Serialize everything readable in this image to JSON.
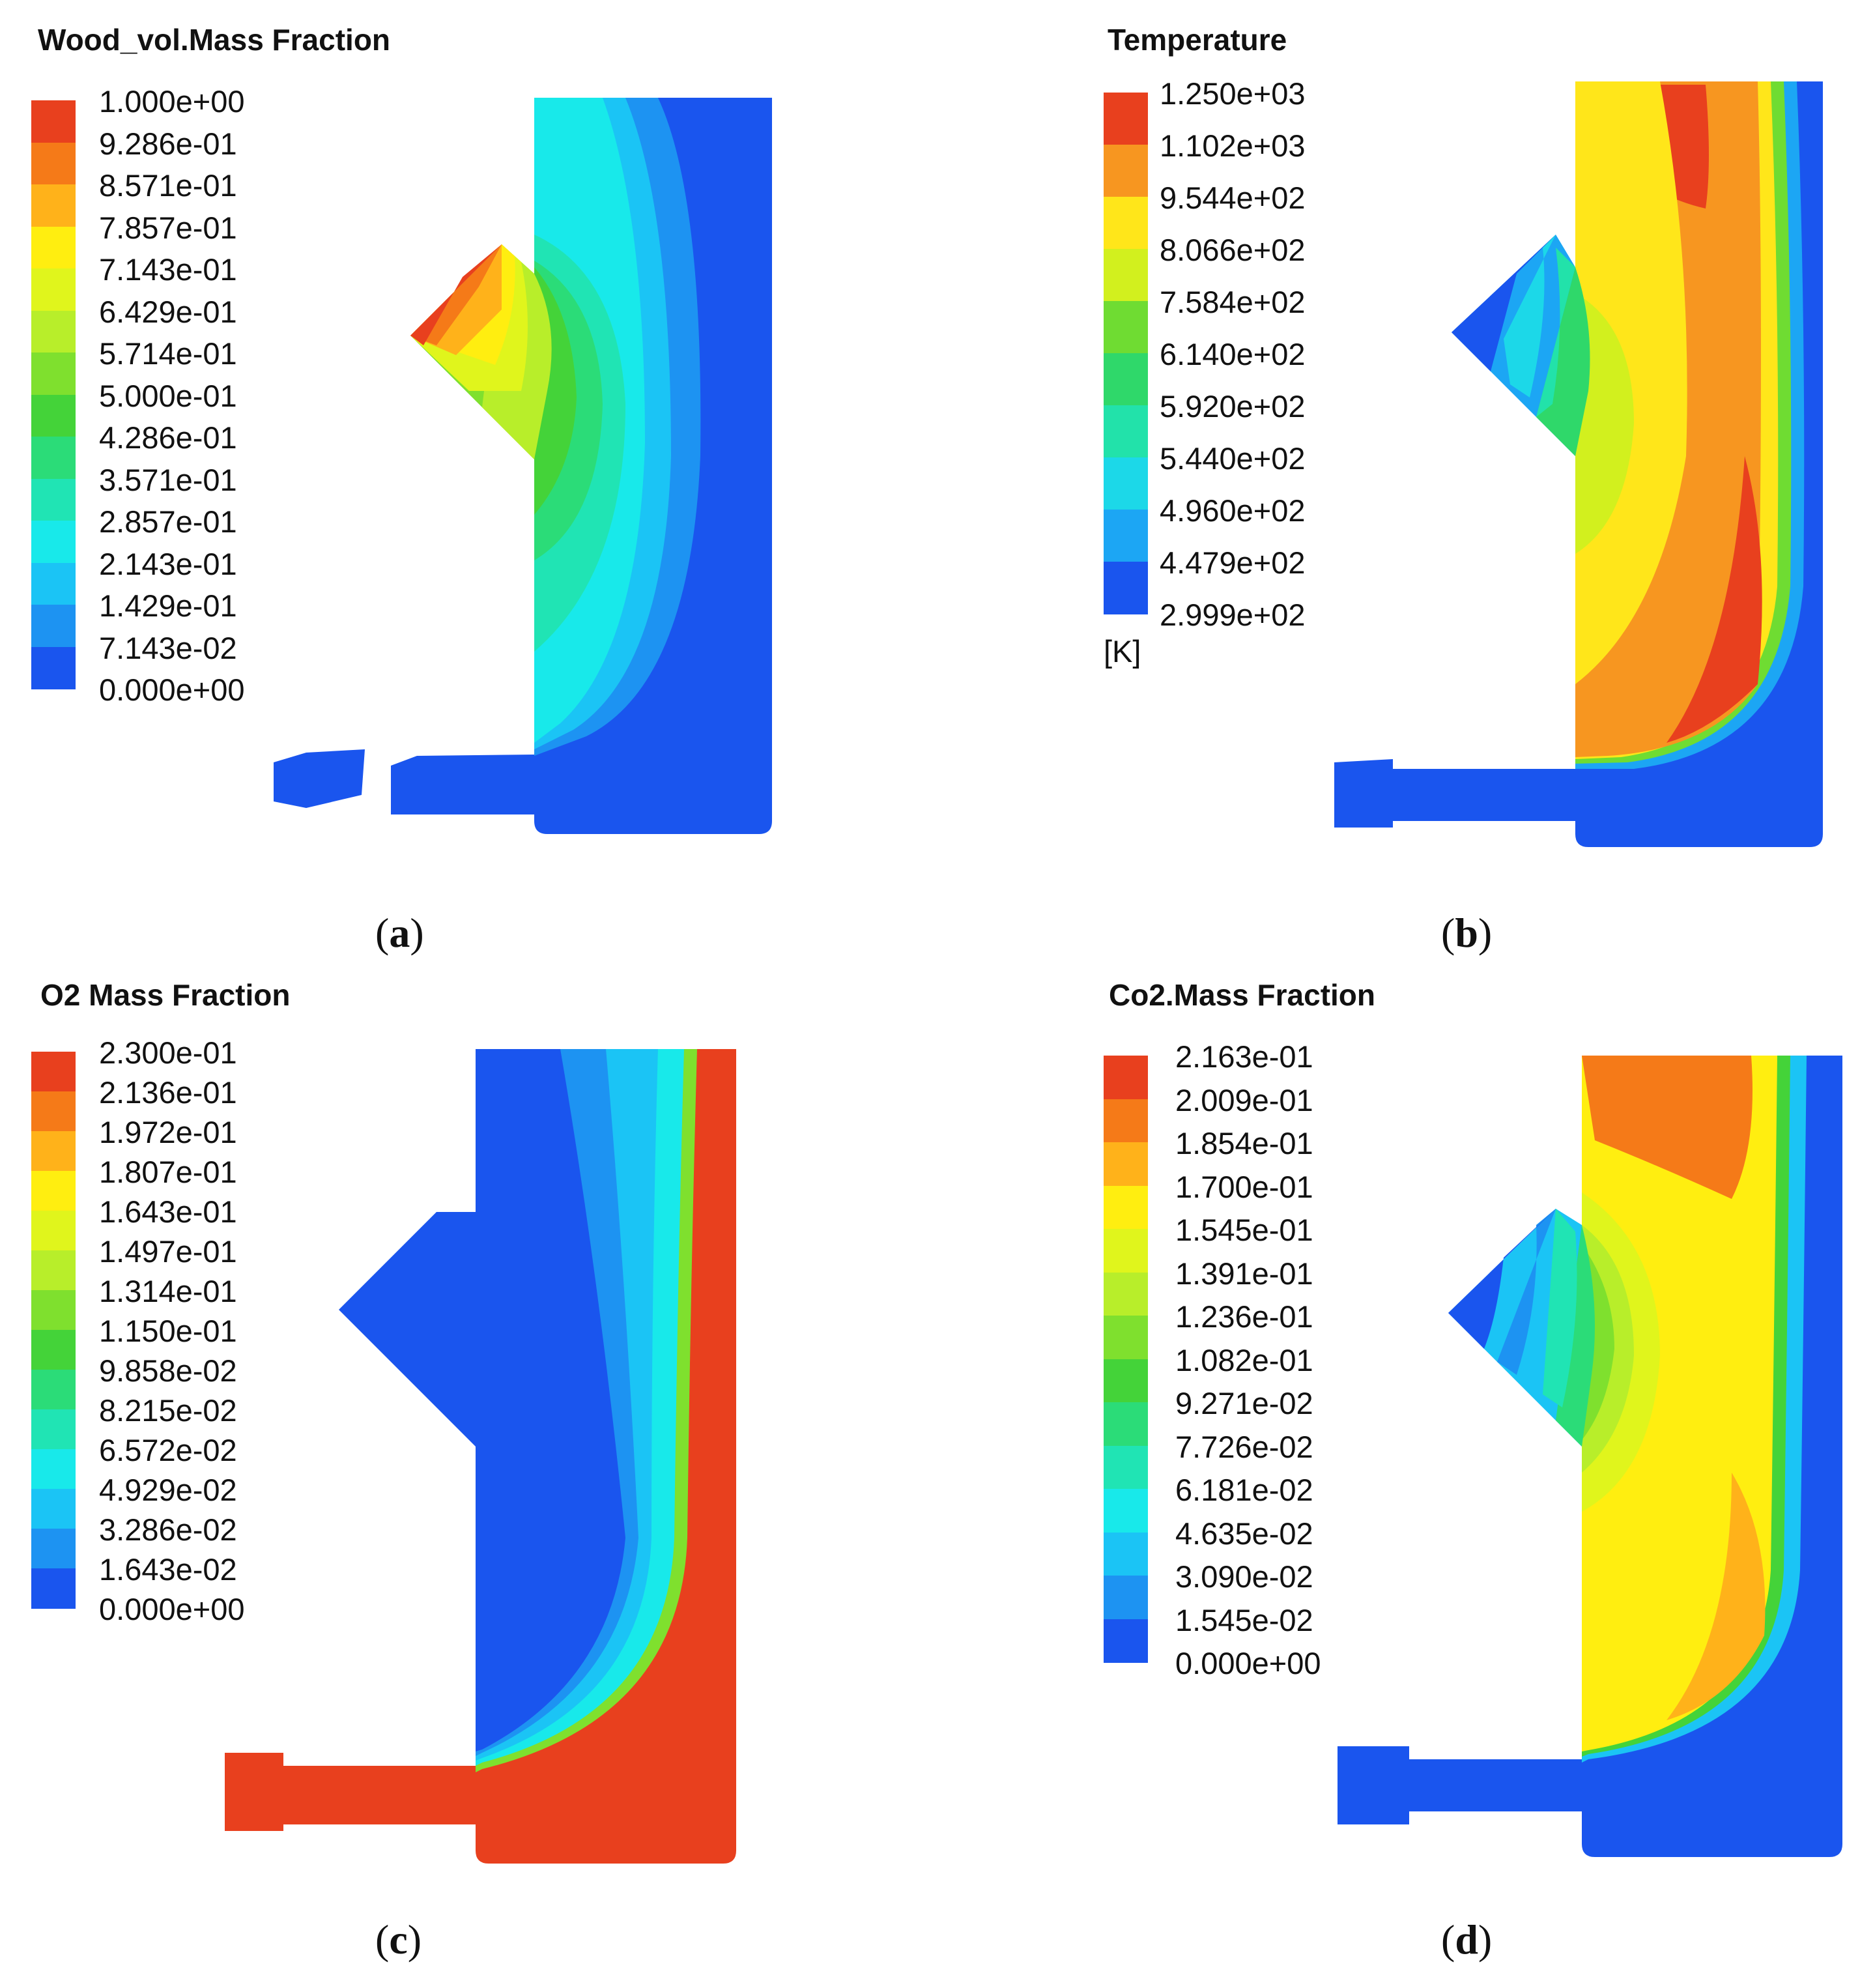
{
  "panels": [
    {
      "id": "a",
      "title": "Wood_vol.Mass Fraction",
      "label": "a",
      "legend": {
        "unit": "",
        "ticks": [
          "1.000e+00",
          "9.286e-01",
          "8.571e-01",
          "7.857e-01",
          "7.143e-01",
          "6.429e-01",
          "5.714e-01",
          "5.000e-01",
          "4.286e-01",
          "3.571e-01",
          "2.857e-01",
          "2.143e-01",
          "1.429e-01",
          "7.143e-02",
          "0.000e+00"
        ],
        "colors": [
          "#e8401e",
          "#f57a18",
          "#ffb21a",
          "#ffee10",
          "#e0f51c",
          "#b8ee2a",
          "#7fe02e",
          "#44d339",
          "#2bdc78",
          "#20e4b4",
          "#18e9ea",
          "#1bc4f5",
          "#1d93f2",
          "#1a55ee"
        ]
      }
    },
    {
      "id": "b",
      "title": "Temperature",
      "label": "b",
      "legend": {
        "unit": "[K]",
        "ticks": [
          "1.250e+03",
          "1.102e+03",
          "9.544e+02",
          "8.066e+02",
          "7.584e+02",
          "6.140e+02",
          "5.920e+02",
          "5.440e+02",
          "4.960e+02",
          "4.479e+02",
          "2.999e+02"
        ],
        "colors": [
          "#e8401e",
          "#f79620",
          "#ffe61a",
          "#d2f01e",
          "#6fdc32",
          "#2fd86a",
          "#22e2aa",
          "#1cd8e8",
          "#1ca6f4",
          "#1a55ee"
        ]
      }
    },
    {
      "id": "c",
      "title": "O2 Mass Fraction",
      "label": "c",
      "legend": {
        "unit": "",
        "ticks": [
          "2.300e-01",
          "2.136e-01",
          "1.972e-01",
          "1.807e-01",
          "1.643e-01",
          "1.497e-01",
          "1.314e-01",
          "1.150e-01",
          "9.858e-02",
          "8.215e-02",
          "6.572e-02",
          "4.929e-02",
          "3.286e-02",
          "1.643e-02",
          "0.000e+00"
        ],
        "colors": [
          "#e8401e",
          "#f57a18",
          "#ffb21a",
          "#ffee10",
          "#e0f51c",
          "#b8ee2a",
          "#7fe02e",
          "#44d339",
          "#2bdc78",
          "#20e4b4",
          "#18e9ea",
          "#1bc4f5",
          "#1d93f2",
          "#1a55ee"
        ]
      }
    },
    {
      "id": "d",
      "title": "Co2.Mass Fraction",
      "label": "d",
      "legend": {
        "unit": "",
        "ticks": [
          "2.163e-01",
          "2.009e-01",
          "1.854e-01",
          "1.700e-01",
          "1.545e-01",
          "1.391e-01",
          "1.236e-01",
          "1.082e-01",
          "9.271e-02",
          "7.726e-02",
          "6.181e-02",
          "4.635e-02",
          "3.090e-02",
          "1.545e-02",
          "0.000e+00"
        ],
        "colors": [
          "#e8401e",
          "#f57a18",
          "#ffb21a",
          "#ffee10",
          "#e0f51c",
          "#b8ee2a",
          "#7fe02e",
          "#44d339",
          "#2bdc78",
          "#20e4b4",
          "#18e9ea",
          "#1bc4f5",
          "#1d93f2",
          "#1a55ee"
        ]
      }
    }
  ]
}
